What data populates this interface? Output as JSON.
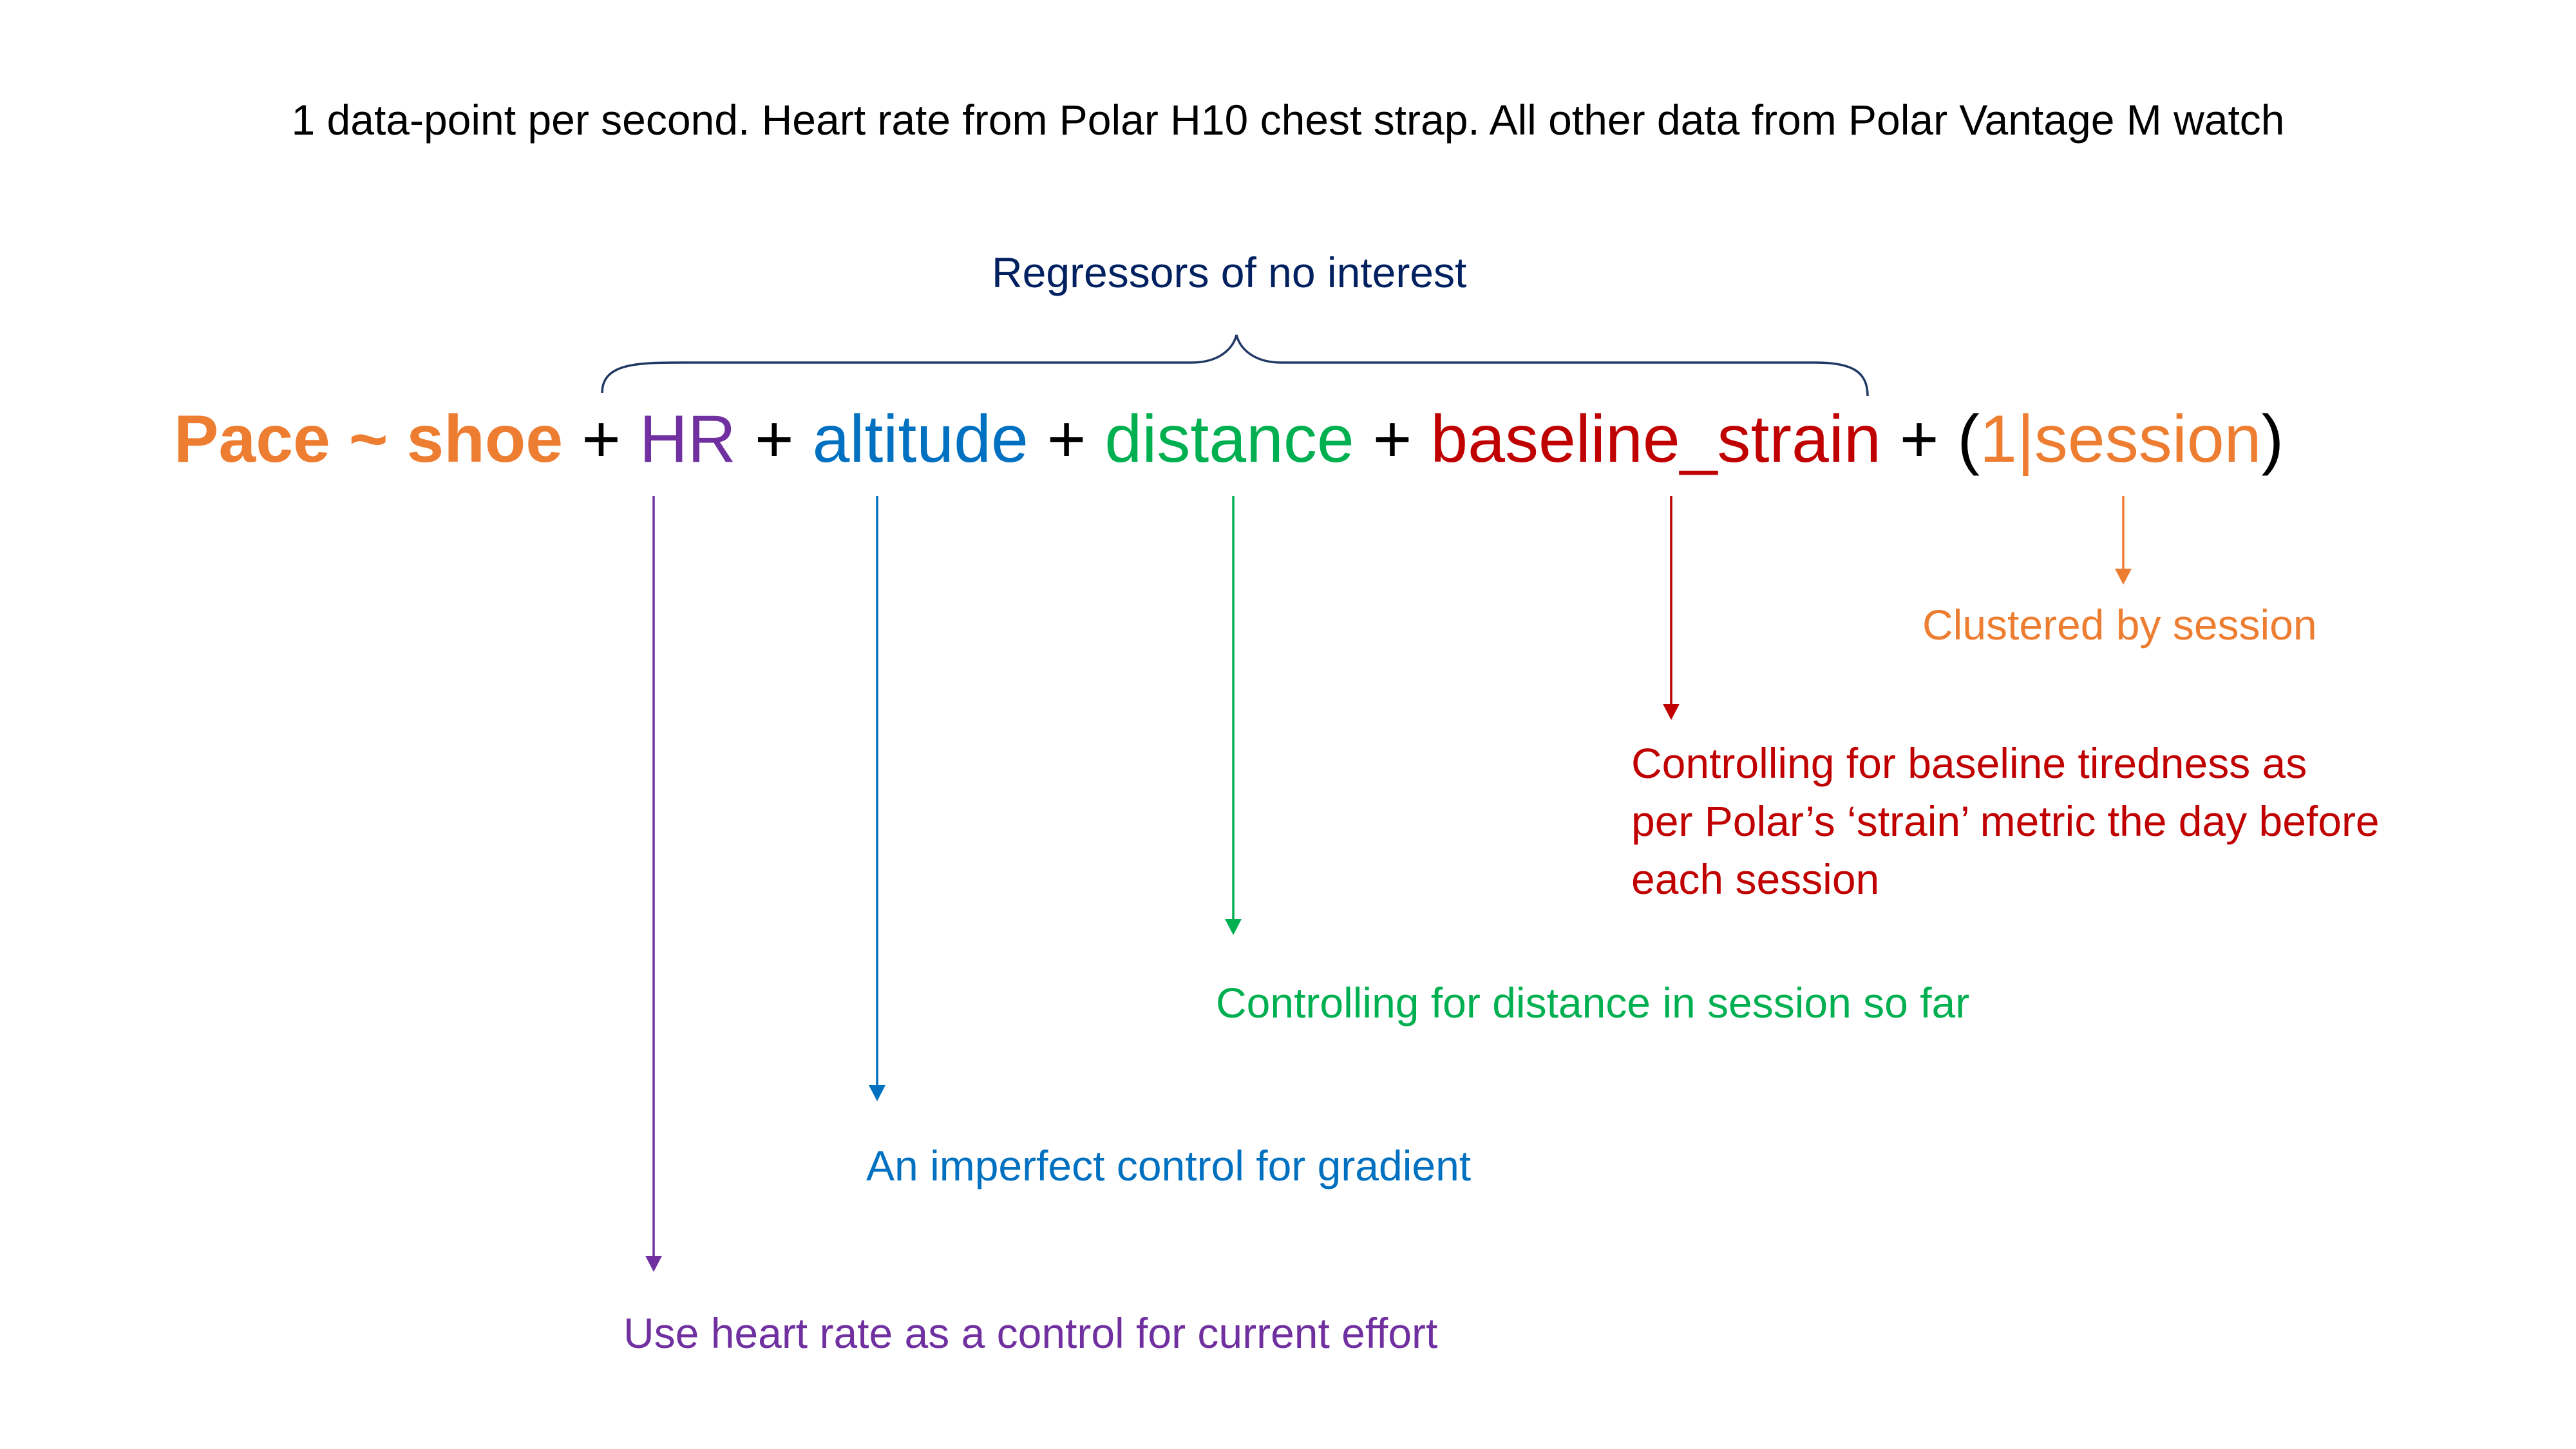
{
  "top_note": "1 data-point per second. Heart rate from Polar H10 chest strap. All other data from Polar Vantage M watch",
  "brace_label": "Regressors of no interest",
  "formula": {
    "response": "Pace ~ shoe",
    "plus": "+",
    "hr": "HR",
    "altitude": "altitude",
    "distance": "distance",
    "baseline_strain": "baseline_strain",
    "open_paren": "(",
    "one": "1",
    "bar": "|",
    "session": "session",
    "close_paren": ")"
  },
  "annotations": {
    "session": "Clustered by session",
    "baseline_strain_lines": [
      "Controlling for baseline tiredness as",
      "per Polar’s ‘strain’ metric the day before",
      "each session"
    ],
    "distance": "Controlling for distance in session so far",
    "altitude": "An imperfect control for gradient",
    "hr": "Use heart rate as a control for current effort"
  },
  "colors": {
    "orange": "#ED7D31",
    "purple": "#7030A0",
    "blue": "#0070C0",
    "green": "#00B050",
    "red": "#C00000",
    "navy": "#002060",
    "black": "#000000"
  }
}
